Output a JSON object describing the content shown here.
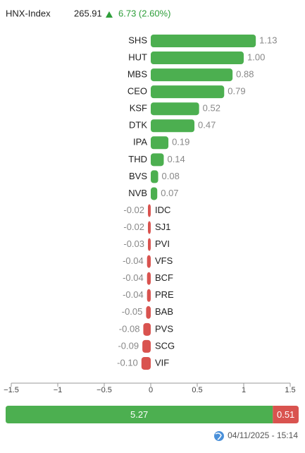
{
  "header": {
    "name": "HNX-Index",
    "value": "265.91",
    "change": "6.73 (2.60%)"
  },
  "chart_data": {
    "type": "hbar",
    "categories": [
      "SHS",
      "HUT",
      "MBS",
      "CEO",
      "KSF",
      "DTK",
      "IPA",
      "THD",
      "BVS",
      "NVB",
      "IDC",
      "SJ1",
      "PVI",
      "VFS",
      "BCF",
      "PRE",
      "BAB",
      "PVS",
      "SCG",
      "VIF"
    ],
    "values": [
      1.13,
      1.0,
      0.88,
      0.79,
      0.52,
      0.47,
      0.19,
      0.14,
      0.08,
      0.07,
      -0.02,
      -0.02,
      -0.03,
      -0.04,
      -0.04,
      -0.04,
      -0.05,
      -0.08,
      -0.09,
      -0.1
    ],
    "value_labels": [
      "1.13",
      "1.00",
      "0.88",
      "0.79",
      "0.52",
      "0.47",
      "0.19",
      "0.14",
      "0.08",
      "0.07",
      "-0.02",
      "-0.02",
      "-0.03",
      "-0.04",
      "-0.04",
      "-0.04",
      "-0.05",
      "-0.08",
      "-0.09",
      "-0.10"
    ],
    "positive_color": "#4caf50",
    "negative_color": "#d9534f",
    "xlim": [
      -1.5,
      1.5
    ],
    "xticks": [
      {
        "value": -1.5,
        "label": "−1.5"
      },
      {
        "value": -1,
        "label": "−1"
      },
      {
        "value": -0.5,
        "label": "−0.5"
      },
      0,
      0.5,
      1,
      1.5
    ]
  },
  "breadth": {
    "values": [
      5.27,
      0.51
    ],
    "colors": [
      "#4caf50",
      "#d9534f"
    ]
  },
  "footer": {
    "timestamp": "04/11/2025 - 15:14"
  }
}
